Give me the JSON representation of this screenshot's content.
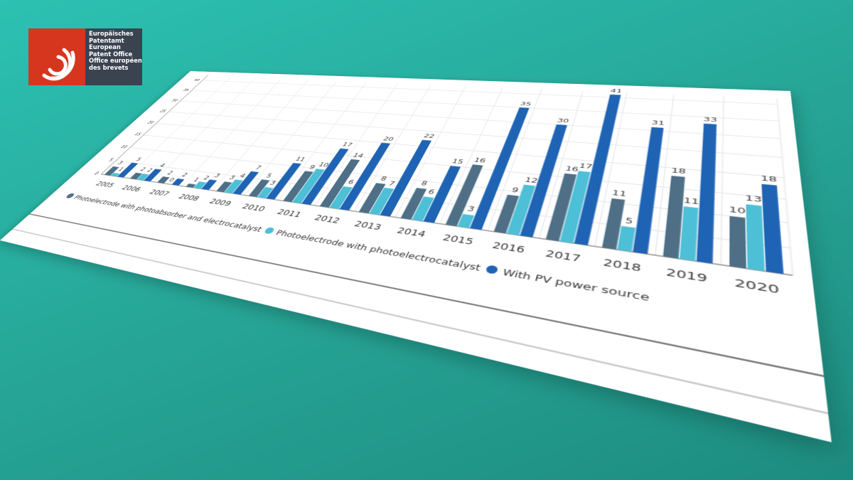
{
  "logo": {
    "lines": [
      "Europäisches",
      "Patentamt",
      "European",
      "Patent Office",
      "Office européen",
      "des brevets"
    ]
  },
  "chart_data": {
    "type": "bar",
    "categories": [
      "2005",
      "2006",
      "2007",
      "2008",
      "2009",
      "2010",
      "2011",
      "2012",
      "2013",
      "2014",
      "2015",
      "2016",
      "2017",
      "2018",
      "2019",
      "2020"
    ],
    "series": [
      {
        "name": "Photoelectrode with photoabsorber and electrocatalyst",
        "color": "#4e6f86",
        "values": [
          3,
          2,
          2,
          1,
          3,
          5,
          9,
          14,
          8,
          8,
          16,
          9,
          16,
          11,
          18,
          10
        ]
      },
      {
        "name": "Photoelectrode with photoelectrocatalyst",
        "color": "#4dbfd6",
        "values": [
          1,
          2,
          0,
          2,
          4,
          3,
          10,
          6,
          7,
          6,
          3,
          12,
          17,
          5,
          11,
          13
        ]
      },
      {
        "name": "With PV power source",
        "color": "#1f63b4",
        "values": [
          5,
          4,
          2,
          3,
          7,
          11,
          17,
          20,
          22,
          15,
          35,
          30,
          41,
          31,
          33,
          18
        ]
      }
    ],
    "ylim": [
      0,
      42
    ],
    "yticks": [
      0,
      5,
      10,
      15,
      20,
      25,
      30,
      35,
      40
    ],
    "grid": true,
    "legend": "bottom"
  }
}
